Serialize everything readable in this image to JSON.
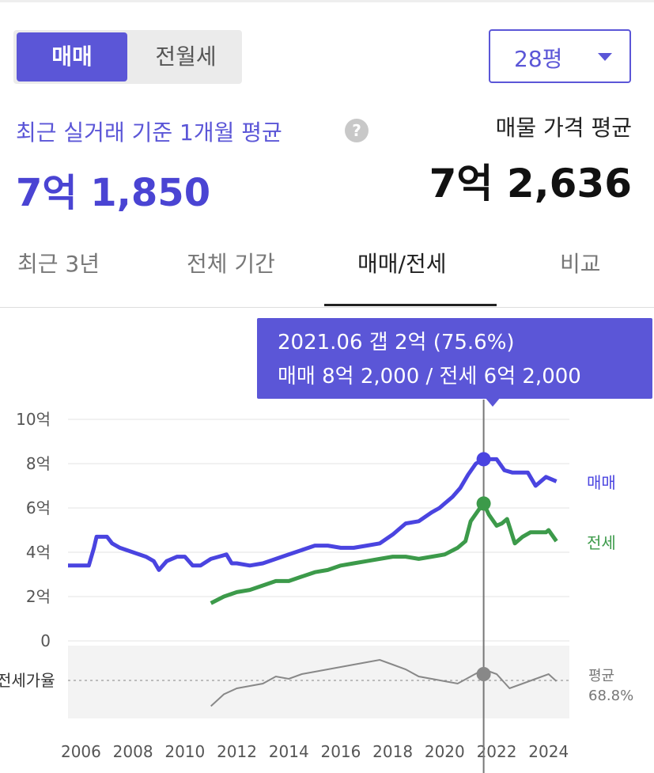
{
  "trade_type": {
    "active": "매매",
    "inactive": "전월세"
  },
  "area_select": {
    "value": "28평"
  },
  "summary": {
    "recent_label": "최근 실거래 기준 1개월 평균",
    "help_icon": "?",
    "recent_price": "7억 1,850",
    "listing_label": "매물 가격 평균",
    "listing_price": "7억 2,636"
  },
  "tabs": [
    {
      "label": "최근 3년"
    },
    {
      "label": "전체 기간"
    },
    {
      "label": "매매/전세"
    },
    {
      "label": "비교"
    }
  ],
  "tooltip": {
    "line1": "2021.06  갭 2억 (75.6%)",
    "line2": "매매 8억 2,000 / 전세 6억 2,000"
  },
  "colors": {
    "accent": "#5b56d7",
    "sale": "#4a44e0",
    "jeonse": "#3c9a4a",
    "ratio": "#888888"
  },
  "chart_data": {
    "type": "line",
    "x_unit": "year",
    "xlim": [
      2005.5,
      2024.8
    ],
    "ylim": [
      0,
      10
    ],
    "y_unit": "억",
    "y_ticks": [
      "10억",
      "8억",
      "6억",
      "4억",
      "2억",
      "0"
    ],
    "x_ticks": [
      "2006",
      "2008",
      "2010",
      "2012",
      "2014",
      "2016",
      "2018",
      "2020",
      "2022",
      "2024"
    ],
    "series": [
      {
        "name": "매매",
        "x": [
          2005.5,
          2006.3,
          2006.5,
          2006.6,
          2007.0,
          2007.2,
          2007.5,
          2008.0,
          2008.5,
          2008.8,
          2009.0,
          2009.3,
          2009.7,
          2010.0,
          2010.3,
          2010.6,
          2011.0,
          2011.3,
          2011.6,
          2011.8,
          2012.0,
          2012.5,
          2013.0,
          2013.5,
          2014.0,
          2014.5,
          2015.0,
          2015.5,
          2016.0,
          2016.5,
          2017.0,
          2017.5,
          2018.0,
          2018.5,
          2019.0,
          2019.5,
          2019.8,
          2020.0,
          2020.3,
          2020.6,
          2020.9,
          2021.2,
          2021.5,
          2022.0,
          2022.3,
          2022.6,
          2022.9,
          2023.2,
          2023.5,
          2023.9,
          2024.3
        ],
        "values": [
          3.4,
          3.4,
          4.2,
          4.7,
          4.7,
          4.4,
          4.2,
          4.0,
          3.8,
          3.6,
          3.2,
          3.6,
          3.8,
          3.8,
          3.4,
          3.4,
          3.7,
          3.8,
          3.9,
          3.5,
          3.5,
          3.4,
          3.5,
          3.7,
          3.9,
          4.1,
          4.3,
          4.3,
          4.2,
          4.2,
          4.3,
          4.4,
          4.8,
          5.3,
          5.4,
          5.8,
          6.0,
          6.2,
          6.5,
          6.9,
          7.5,
          8.0,
          8.2,
          8.2,
          7.7,
          7.6,
          7.6,
          7.6,
          7.0,
          7.4,
          7.2
        ]
      },
      {
        "name": "전세",
        "x": [
          2011.0,
          2011.5,
          2012.0,
          2012.5,
          2013.0,
          2013.5,
          2014.0,
          2014.5,
          2015.0,
          2015.5,
          2016.0,
          2016.5,
          2017.0,
          2017.5,
          2018.0,
          2018.5,
          2019.0,
          2019.5,
          2020.0,
          2020.5,
          2020.8,
          2021.0,
          2021.3,
          2021.5,
          2021.7,
          2022.0,
          2022.2,
          2022.4,
          2022.7,
          2023.0,
          2023.3,
          2023.6,
          2023.9,
          2024.0,
          2024.3
        ],
        "values": [
          1.7,
          2.0,
          2.2,
          2.3,
          2.5,
          2.7,
          2.7,
          2.9,
          3.1,
          3.2,
          3.4,
          3.5,
          3.6,
          3.7,
          3.8,
          3.8,
          3.7,
          3.8,
          3.9,
          4.2,
          4.5,
          5.4,
          5.9,
          6.2,
          5.7,
          5.2,
          5.3,
          5.5,
          4.4,
          4.7,
          4.9,
          4.9,
          4.9,
          5.0,
          4.5
        ]
      }
    ],
    "ratio_label": "전세가율",
    "average_label": "평균",
    "average_value": "68.8%",
    "ratio_series": {
      "name": "전세가율",
      "x": [
        2011.0,
        2011.5,
        2012.0,
        2012.5,
        2013.0,
        2013.5,
        2014.0,
        2014.5,
        2015.0,
        2015.5,
        2016.0,
        2016.5,
        2017.0,
        2017.5,
        2018.0,
        2018.5,
        2019.0,
        2019.5,
        2020.0,
        2020.5,
        2021.0,
        2021.5,
        2022.0,
        2022.5,
        2023.0,
        2023.5,
        2024.0,
        2024.3
      ],
      "values": [
        45,
        55,
        60,
        62,
        64,
        70,
        68,
        72,
        74,
        76,
        78,
        80,
        82,
        84,
        80,
        76,
        70,
        68,
        66,
        64,
        70,
        76,
        72,
        60,
        64,
        68,
        72,
        66
      ]
    },
    "marker": {
      "x": 2021.5,
      "sale": 8.2,
      "jeonse": 6.2
    }
  }
}
